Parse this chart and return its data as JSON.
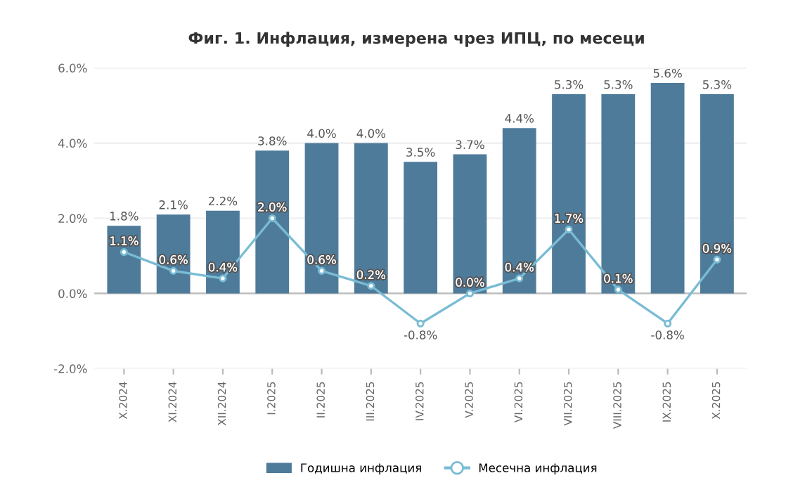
{
  "chart_data": {
    "type": "bar",
    "title": "Фиг. 1. Инфлация, измерена чрез ИПЦ, по месеци",
    "categories": [
      "X.2024",
      "XI.2024",
      "XII.2024",
      "I.2025",
      "II.2025",
      "III.2025",
      "IV.2025",
      "V.2025",
      "VI.2025",
      "VII.2025",
      "VIII.2025",
      "IX.2025",
      "X.2025"
    ],
    "series": [
      {
        "name": "Годишна инфлация",
        "color": "#4f7b9b",
        "values": [
          1.8,
          2.1,
          2.2,
          3.8,
          4.0,
          4.0,
          3.5,
          3.7,
          4.4,
          5.3,
          5.3,
          5.6,
          5.3
        ],
        "value_labels": [
          "1.8%",
          "2.1%",
          "2.2%",
          "3.8%",
          "4.0%",
          "4.0%",
          "3.5%",
          "3.7%",
          "4.4%",
          "5.3%",
          "5.3%",
          "5.6%",
          "5.3%"
        ]
      },
      {
        "name": "Месечна инфлация",
        "type": "line",
        "color": "#79bcd4",
        "values": [
          1.1,
          0.6,
          0.4,
          2.0,
          0.6,
          0.2,
          -0.8,
          0.0,
          0.4,
          1.7,
          0.1,
          -0.8,
          0.9
        ],
        "value_labels": [
          "1.1%",
          "0.6%",
          "0.4%",
          "2.0%",
          "0.6%",
          "0.2%",
          "-0.8%",
          "0.0%",
          "0.4%",
          "1.7%",
          "0.1%",
          "-0.8%",
          "0.9%"
        ]
      }
    ],
    "ylim": [
      -2.0,
      6.0
    ],
    "yticks": [
      {
        "value": -2.0,
        "label": "-2.0%"
      },
      {
        "value": 0.0,
        "label": "0.0%"
      },
      {
        "value": 2.0,
        "label": "2.0%"
      },
      {
        "value": 4.0,
        "label": "4.0%"
      },
      {
        "value": 6.0,
        "label": "6.0%"
      }
    ],
    "grid": "y",
    "legend": "bottom",
    "marker": "circle",
    "line_style": "solid"
  }
}
